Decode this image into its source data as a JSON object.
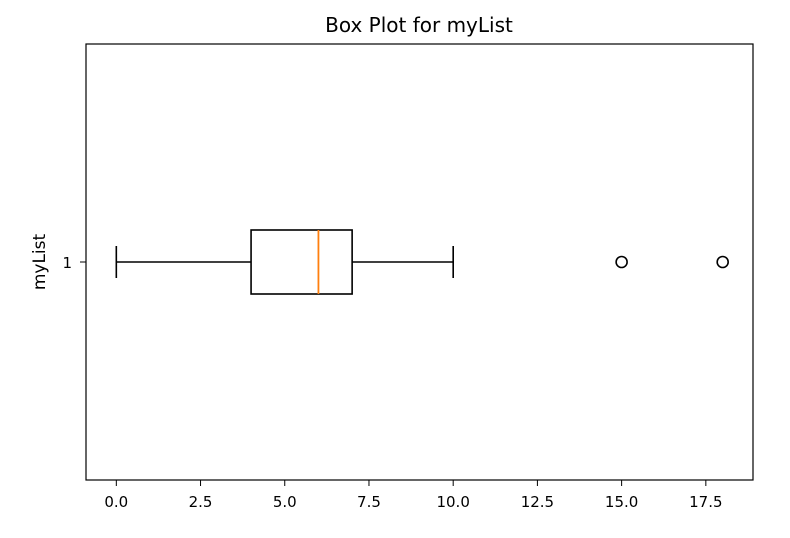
{
  "chart_data": {
    "type": "boxplot",
    "orientation": "horizontal",
    "title": "Box Plot for myList",
    "xlabel": "",
    "ylabel": "myList",
    "xlim": [
      -0.9,
      18.9
    ],
    "xticks": [
      0.0,
      2.5,
      5.0,
      7.5,
      10.0,
      12.5,
      15.0,
      17.5
    ],
    "xtick_labels": [
      "0.0",
      "2.5",
      "5.0",
      "7.5",
      "10.0",
      "12.5",
      "15.0",
      "17.5"
    ],
    "yticks": [
      1
    ],
    "ytick_labels": [
      "1"
    ],
    "grid": false,
    "series": [
      {
        "category": "1",
        "whisker_low": 0,
        "q1": 4,
        "median": 6,
        "q3": 7,
        "whisker_high": 10,
        "outliers": [
          15,
          18
        ]
      }
    ],
    "colors": {
      "box": "#000000",
      "median": "#ff7f0e",
      "whisker": "#000000",
      "outlier": "#000000"
    }
  }
}
